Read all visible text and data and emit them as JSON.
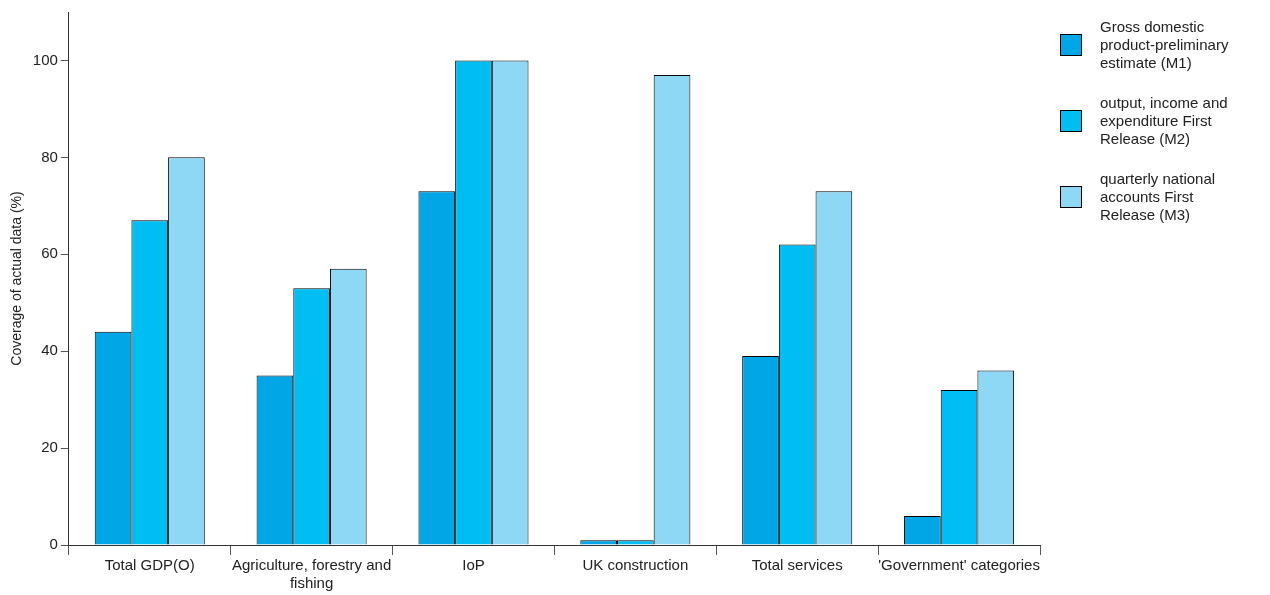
{
  "chart_data": {
    "type": "bar",
    "ylabel": "Coverage of actual data (%)",
    "categories": [
      "Total GDP(O)",
      "Agriculture, forestry and fishing",
      "IoP",
      "UK construction",
      "Total services",
      "'Government' categories"
    ],
    "series": [
      {
        "name": "Gross domestic product-preliminary estimate (M1)",
        "color": "#00a6e6",
        "values": [
          44,
          35,
          73,
          1,
          39,
          6
        ]
      },
      {
        "name": "output, income and expenditure First Release (M2)",
        "color": "#00bdf2",
        "values": [
          67,
          53,
          100,
          1,
          62,
          32
        ]
      },
      {
        "name": "quarterly national accounts First Release (M3)",
        "color": "#8fd8f5",
        "values": [
          80,
          57,
          100,
          97,
          73,
          36
        ]
      }
    ],
    "ylim": [
      0,
      110
    ],
    "yticks": [
      0,
      20,
      40,
      60,
      80,
      100
    ],
    "grid": false,
    "legend": "right"
  }
}
